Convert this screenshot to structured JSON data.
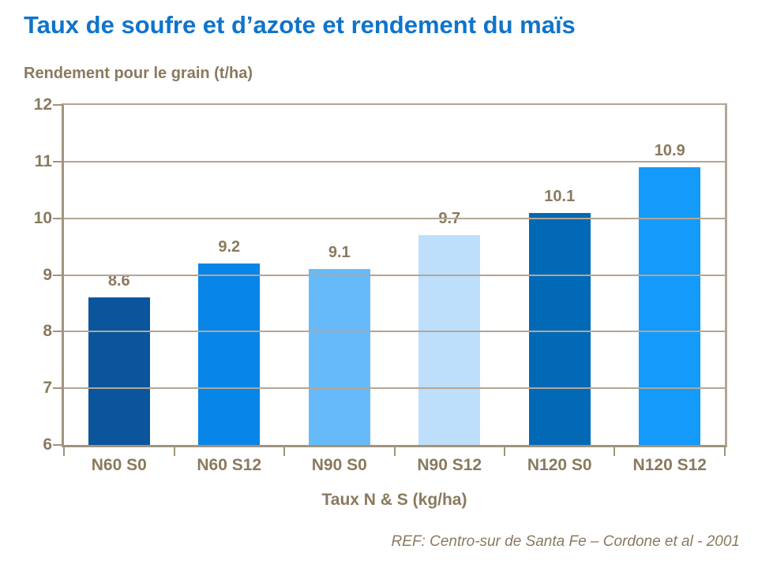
{
  "page": {
    "title": "Taux de soufre et d’azote et rendement du maïs",
    "reference": "REF: Centro-sur de Santa Fe – Cordone et al - 2001"
  },
  "colors": {
    "title_blue": "#0E74CC",
    "label_brown": "#8A795E",
    "grid_line": "#B3A696",
    "axis_line": "#A1947E",
    "bar_colors": [
      "#0A559C",
      "#0885E8",
      "#67BAFA",
      "#BDDFFC",
      "#0169B5",
      "#149AFB"
    ]
  },
  "chart_data": {
    "type": "bar",
    "title": "Taux de soufre et d’azote et rendement du maïs",
    "categories": [
      "N60 S0",
      "N60 S12",
      "N90 S0",
      "N90 S12",
      "N120 S0",
      "N120 S12"
    ],
    "values": [
      8.6,
      9.2,
      9.1,
      9.7,
      10.1,
      10.9
    ],
    "value_labels": [
      "8.6",
      "9.2",
      "9.1",
      "9.7",
      "10.1",
      "10.9"
    ],
    "xlabel": "Taux N & S (kg/ha)",
    "ylabel": "Rendement pour le grain (t/ha)",
    "ylim": [
      6,
      12
    ],
    "yticks": [
      6,
      7,
      8,
      9,
      10,
      11,
      12
    ],
    "grid": true,
    "legend": false,
    "source_note": "REF: Centro-sur de Santa Fe – Cordone et al - 2001"
  }
}
